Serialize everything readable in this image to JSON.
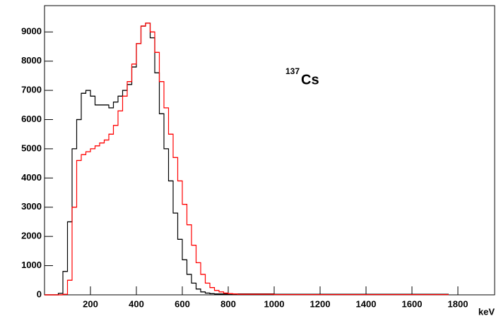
{
  "chart_data": {
    "type": "histogram",
    "annotation": {
      "superscript": "137",
      "text": "Cs"
    },
    "x_label": "keV",
    "bins": [
      0,
      20,
      40,
      60,
      80,
      100,
      120,
      140,
      160,
      180,
      200,
      220,
      240,
      260,
      280,
      300,
      320,
      340,
      360,
      380,
      400,
      420,
      440,
      460,
      480,
      500,
      520,
      540,
      560,
      580,
      600,
      620,
      640,
      660,
      680,
      700,
      720,
      740,
      760,
      780,
      800,
      820,
      840,
      860,
      880,
      900,
      920,
      940,
      960,
      980,
      1000,
      1760
    ],
    "series": [
      {
        "color": "#000000",
        "values": [
          0,
          0,
          0,
          50,
          800,
          2500,
          5000,
          6000,
          6900,
          7000,
          6800,
          6500,
          6500,
          6500,
          6400,
          6600,
          6800,
          7000,
          7200,
          7800,
          8600,
          9200,
          9300,
          8800,
          7600,
          6200,
          5000,
          3900,
          2800,
          1900,
          1200,
          700,
          400,
          200,
          100,
          60,
          40,
          30,
          30,
          30,
          30,
          30,
          30,
          30,
          30,
          30,
          30,
          30,
          30,
          30,
          20
        ]
      },
      {
        "color": "#ff0000",
        "values": [
          0,
          0,
          0,
          0,
          20,
          500,
          3000,
          4600,
          4800,
          4900,
          5000,
          5100,
          5200,
          5300,
          5500,
          5800,
          6300,
          6800,
          7300,
          7900,
          8600,
          9200,
          9300,
          9000,
          8300,
          7300,
          6400,
          5500,
          4700,
          3900,
          3100,
          2400,
          1700,
          1100,
          700,
          400,
          250,
          150,
          100,
          60,
          40,
          30,
          20,
          20,
          20,
          20,
          20,
          20,
          20,
          20,
          10
        ]
      }
    ],
    "xlim": [
      0,
      1960
    ],
    "ylim": [
      0,
      9900
    ],
    "xticks": [
      200,
      400,
      600,
      800,
      1000,
      1200,
      1400,
      1600,
      1800
    ],
    "yticks": [
      0,
      1000,
      2000,
      3000,
      4000,
      5000,
      6000,
      7000,
      8000,
      9000
    ]
  }
}
